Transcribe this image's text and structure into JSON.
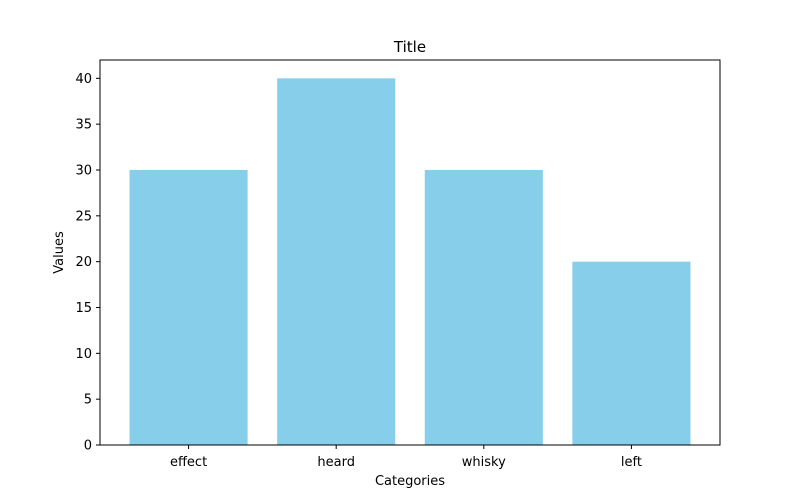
{
  "chart_data": {
    "type": "bar",
    "title": "Title",
    "xlabel": "Categories",
    "ylabel": "Values",
    "categories": [
      "effect",
      "heard",
      "whisky",
      "left"
    ],
    "values": [
      30,
      40,
      30,
      20
    ],
    "ylim": [
      0,
      42
    ],
    "yticks": [
      0,
      5,
      10,
      15,
      20,
      25,
      30,
      35,
      40
    ],
    "bar_color": "#87ceeb",
    "grid": false,
    "legend": "none"
  }
}
